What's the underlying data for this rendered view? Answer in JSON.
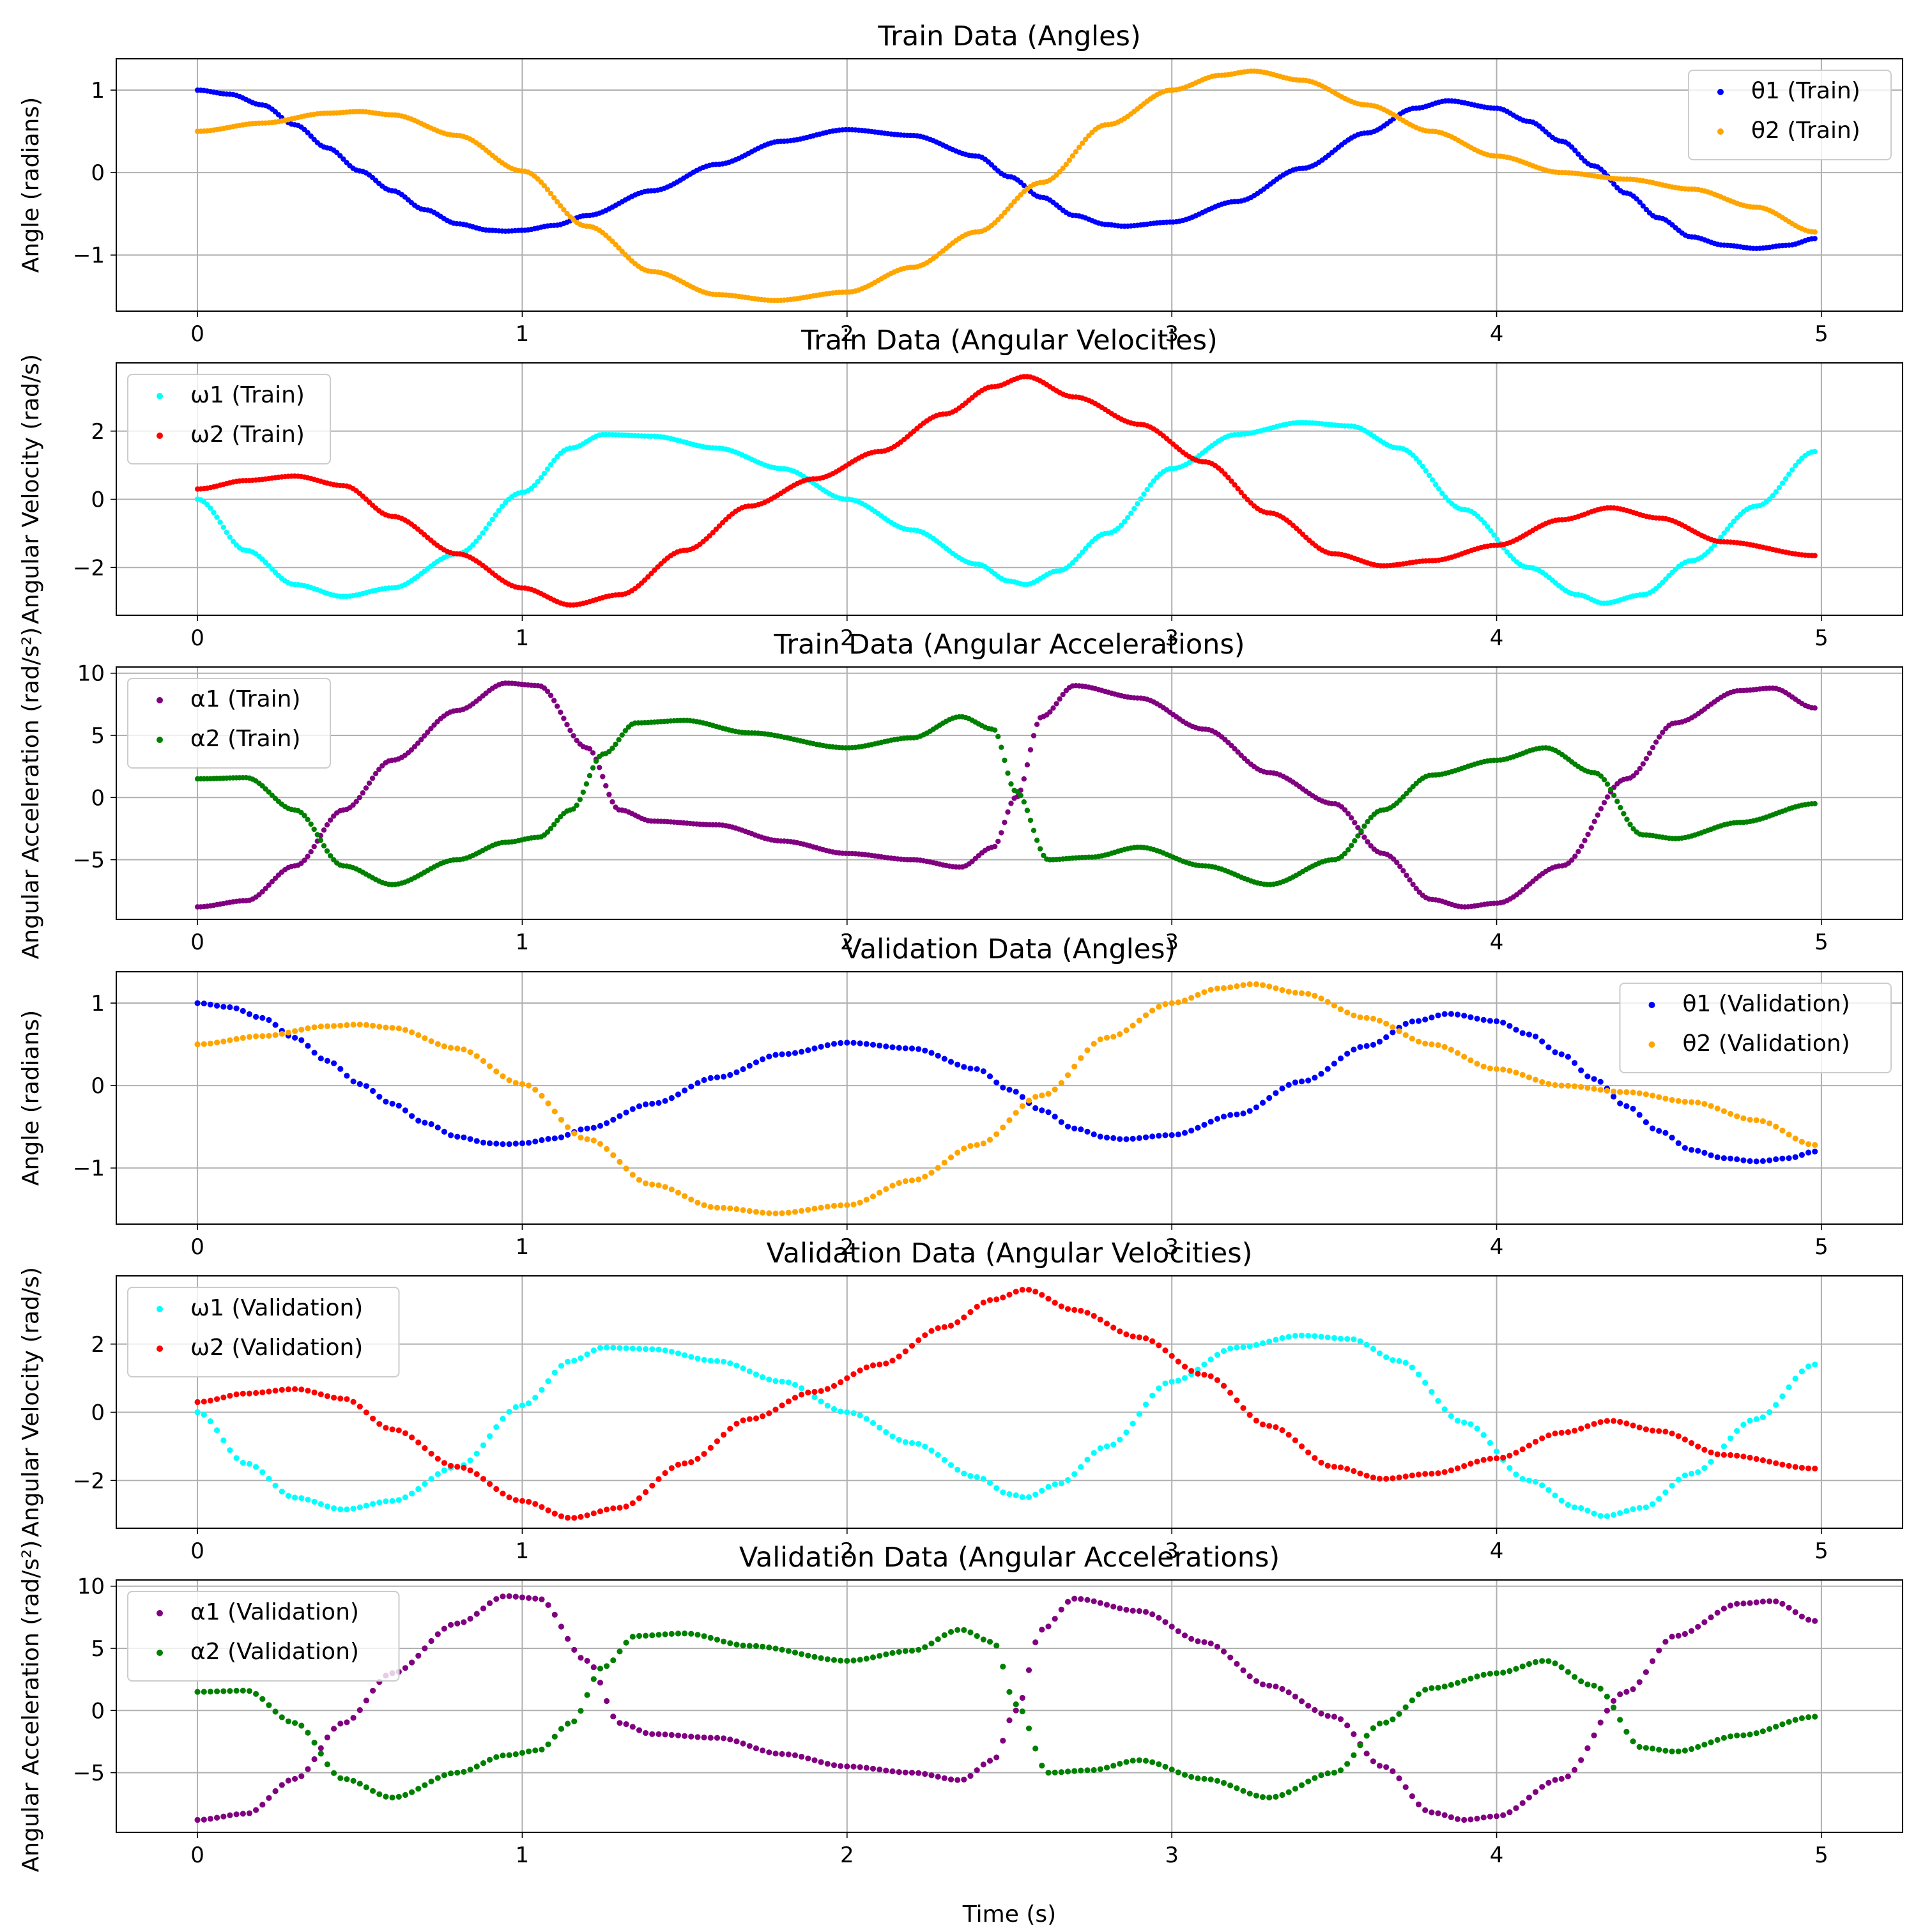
{
  "chart_data": [
    {
      "type": "scatter",
      "title": "Train Data (Angles)",
      "xlabel": "",
      "ylabel": "Angle (radians)",
      "xlim": [
        -0.25,
        5.25
      ],
      "ylim": [
        -1.68,
        1.38
      ],
      "xticks": [
        "0",
        "1",
        "2",
        "3",
        "4",
        "5"
      ],
      "yticks": [
        "1",
        "0",
        "−1"
      ],
      "legend_position": "upper right",
      "grid": true,
      "x": {
        "start": 0,
        "end": 4.98,
        "count": 500
      },
      "series": [
        {
          "name": "θ1 (Train)",
          "color": "#0000ff",
          "keyframes": [
            [
              0,
              1.0
            ],
            [
              0.1,
              0.95
            ],
            [
              0.2,
              0.82
            ],
            [
              0.3,
              0.58
            ],
            [
              0.4,
              0.3
            ],
            [
              0.5,
              0.02
            ],
            [
              0.6,
              -0.22
            ],
            [
              0.7,
              -0.45
            ],
            [
              0.8,
              -0.62
            ],
            [
              0.9,
              -0.7
            ],
            [
              0.95,
              -0.71
            ],
            [
              1.0,
              -0.7
            ],
            [
              1.1,
              -0.64
            ],
            [
              1.2,
              -0.52
            ],
            [
              1.4,
              -0.22
            ],
            [
              1.6,
              0.1
            ],
            [
              1.8,
              0.38
            ],
            [
              2.0,
              0.52
            ],
            [
              2.2,
              0.45
            ],
            [
              2.4,
              0.2
            ],
            [
              2.5,
              -0.05
            ],
            [
              2.6,
              -0.3
            ],
            [
              2.7,
              -0.52
            ],
            [
              2.8,
              -0.63
            ],
            [
              2.85,
              -0.65
            ],
            [
              3.0,
              -0.6
            ],
            [
              3.2,
              -0.35
            ],
            [
              3.4,
              0.05
            ],
            [
              3.6,
              0.48
            ],
            [
              3.75,
              0.78
            ],
            [
              3.85,
              0.87
            ],
            [
              4.0,
              0.78
            ],
            [
              4.1,
              0.62
            ],
            [
              4.2,
              0.38
            ],
            [
              4.3,
              0.08
            ],
            [
              4.4,
              -0.25
            ],
            [
              4.5,
              -0.55
            ],
            [
              4.6,
              -0.78
            ],
            [
              4.7,
              -0.88
            ],
            [
              4.8,
              -0.92
            ],
            [
              4.9,
              -0.88
            ],
            [
              4.98,
              -0.8
            ]
          ]
        },
        {
          "name": "θ2 (Train)",
          "color": "#ffa500",
          "keyframes": [
            [
              0,
              0.5
            ],
            [
              0.2,
              0.6
            ],
            [
              0.4,
              0.72
            ],
            [
              0.5,
              0.74
            ],
            [
              0.6,
              0.7
            ],
            [
              0.8,
              0.45
            ],
            [
              1.0,
              0.02
            ],
            [
              1.2,
              -0.65
            ],
            [
              1.4,
              -1.2
            ],
            [
              1.6,
              -1.48
            ],
            [
              1.78,
              -1.55
            ],
            [
              2.0,
              -1.45
            ],
            [
              2.2,
              -1.15
            ],
            [
              2.4,
              -0.72
            ],
            [
              2.6,
              -0.12
            ],
            [
              2.8,
              0.58
            ],
            [
              3.0,
              1.0
            ],
            [
              3.15,
              1.18
            ],
            [
              3.25,
              1.23
            ],
            [
              3.4,
              1.12
            ],
            [
              3.6,
              0.82
            ],
            [
              3.8,
              0.5
            ],
            [
              4.0,
              0.2
            ],
            [
              4.2,
              0.0
            ],
            [
              4.4,
              -0.08
            ],
            [
              4.6,
              -0.2
            ],
            [
              4.8,
              -0.42
            ],
            [
              4.98,
              -0.72
            ]
          ]
        }
      ]
    },
    {
      "type": "scatter",
      "title": "Train Data (Angular Velocities)",
      "xlabel": "",
      "ylabel": "Angular Velocity (rad/s)",
      "xlim": [
        -0.25,
        5.25
      ],
      "ylim": [
        -3.4,
        4.0
      ],
      "xticks": [
        "0",
        "1",
        "2",
        "3",
        "4",
        "5"
      ],
      "yticks": [
        "2",
        "0",
        "−2"
      ],
      "legend_position": "upper left",
      "grid": true,
      "x": {
        "start": 0,
        "end": 4.98,
        "count": 500
      },
      "series": [
        {
          "name": "ω1 (Train)",
          "color": "#00ffff",
          "keyframes": [
            [
              0,
              0.0
            ],
            [
              0.15,
              -1.5
            ],
            [
              0.3,
              -2.5
            ],
            [
              0.45,
              -2.85
            ],
            [
              0.6,
              -2.6
            ],
            [
              0.8,
              -1.6
            ],
            [
              1.0,
              0.2
            ],
            [
              1.15,
              1.5
            ],
            [
              1.25,
              1.9
            ],
            [
              1.4,
              1.85
            ],
            [
              1.6,
              1.5
            ],
            [
              1.8,
              0.9
            ],
            [
              2.0,
              0.0
            ],
            [
              2.2,
              -0.9
            ],
            [
              2.4,
              -1.9
            ],
            [
              2.5,
              -2.4
            ],
            [
              2.55,
              -2.5
            ],
            [
              2.65,
              -2.1
            ],
            [
              2.8,
              -1.0
            ],
            [
              3.0,
              0.9
            ],
            [
              3.2,
              1.9
            ],
            [
              3.4,
              2.25
            ],
            [
              3.55,
              2.15
            ],
            [
              3.7,
              1.5
            ],
            [
              3.9,
              -0.3
            ],
            [
              4.1,
              -2.0
            ],
            [
              4.25,
              -2.8
            ],
            [
              4.33,
              -3.05
            ],
            [
              4.45,
              -2.8
            ],
            [
              4.6,
              -1.8
            ],
            [
              4.8,
              -0.2
            ],
            [
              4.98,
              1.4
            ]
          ]
        },
        {
          "name": "ω2 (Train)",
          "color": "#ff0000",
          "keyframes": [
            [
              0,
              0.3
            ],
            [
              0.15,
              0.55
            ],
            [
              0.3,
              0.68
            ],
            [
              0.45,
              0.4
            ],
            [
              0.6,
              -0.5
            ],
            [
              0.8,
              -1.6
            ],
            [
              1.0,
              -2.6
            ],
            [
              1.15,
              -3.1
            ],
            [
              1.3,
              -2.8
            ],
            [
              1.5,
              -1.5
            ],
            [
              1.7,
              -0.2
            ],
            [
              1.9,
              0.6
            ],
            [
              2.1,
              1.4
            ],
            [
              2.3,
              2.5
            ],
            [
              2.45,
              3.3
            ],
            [
              2.55,
              3.6
            ],
            [
              2.7,
              3.0
            ],
            [
              2.9,
              2.2
            ],
            [
              3.1,
              1.1
            ],
            [
              3.3,
              -0.4
            ],
            [
              3.5,
              -1.6
            ],
            [
              3.65,
              -1.95
            ],
            [
              3.8,
              -1.8
            ],
            [
              4.0,
              -1.35
            ],
            [
              4.2,
              -0.6
            ],
            [
              4.35,
              -0.25
            ],
            [
              4.5,
              -0.55
            ],
            [
              4.7,
              -1.25
            ],
            [
              4.98,
              -1.65
            ]
          ]
        }
      ]
    },
    {
      "type": "scatter",
      "title": "Train Data (Angular Accelerations)",
      "xlabel": "",
      "ylabel": "Angular Acceleration (rad/s²)",
      "xlim": [
        -0.25,
        5.25
      ],
      "ylim": [
        -9.8,
        10.5
      ],
      "xticks": [
        "0",
        "1",
        "2",
        "3",
        "4",
        "5"
      ],
      "yticks": [
        "10",
        "5",
        "0",
        "−5"
      ],
      "legend_position": "upper left",
      "grid": true,
      "x": {
        "start": 0,
        "end": 4.98,
        "count": 500
      },
      "series": [
        {
          "name": "α1 (Train)",
          "color": "#800080",
          "keyframes": [
            [
              0,
              -8.8
            ],
            [
              0.15,
              -8.3
            ],
            [
              0.3,
              -5.5
            ],
            [
              0.45,
              -1.0
            ],
            [
              0.6,
              3.0
            ],
            [
              0.8,
              7.0
            ],
            [
              0.95,
              9.2
            ],
            [
              1.05,
              9.0
            ],
            [
              1.2,
              4.0
            ],
            [
              1.3,
              -1.0
            ],
            [
              1.4,
              -1.9
            ],
            [
              1.6,
              -2.2
            ],
            [
              1.8,
              -3.5
            ],
            [
              2.0,
              -4.5
            ],
            [
              2.2,
              -5.0
            ],
            [
              2.35,
              -5.6
            ],
            [
              2.45,
              -4.0
            ],
            [
              2.52,
              0.0
            ],
            [
              2.6,
              6.5
            ],
            [
              2.7,
              9.0
            ],
            [
              2.9,
              8.0
            ],
            [
              3.1,
              5.5
            ],
            [
              3.3,
              2.0
            ],
            [
              3.5,
              -0.5
            ],
            [
              3.65,
              -4.5
            ],
            [
              3.8,
              -8.2
            ],
            [
              3.9,
              -8.8
            ],
            [
              4.0,
              -8.5
            ],
            [
              4.2,
              -5.5
            ],
            [
              4.4,
              1.5
            ],
            [
              4.55,
              6.0
            ],
            [
              4.75,
              8.6
            ],
            [
              4.85,
              8.8
            ],
            [
              4.98,
              7.2
            ]
          ]
        },
        {
          "name": "α2 (Train)",
          "color": "#008000",
          "keyframes": [
            [
              0,
              1.5
            ],
            [
              0.15,
              1.6
            ],
            [
              0.3,
              -1.0
            ],
            [
              0.45,
              -5.5
            ],
            [
              0.6,
              -7.0
            ],
            [
              0.8,
              -5.0
            ],
            [
              0.95,
              -3.6
            ],
            [
              1.05,
              -3.2
            ],
            [
              1.15,
              -1.0
            ],
            [
              1.25,
              3.5
            ],
            [
              1.35,
              6.0
            ],
            [
              1.5,
              6.2
            ],
            [
              1.7,
              5.2
            ],
            [
              2.0,
              4.0
            ],
            [
              2.2,
              4.8
            ],
            [
              2.35,
              6.5
            ],
            [
              2.45,
              5.5
            ],
            [
              2.52,
              0.5
            ],
            [
              2.62,
              -5.0
            ],
            [
              2.75,
              -4.8
            ],
            [
              2.9,
              -4.0
            ],
            [
              3.1,
              -5.5
            ],
            [
              3.3,
              -7.0
            ],
            [
              3.5,
              -5.0
            ],
            [
              3.65,
              -1.0
            ],
            [
              3.8,
              1.8
            ],
            [
              4.0,
              3.0
            ],
            [
              4.15,
              4.0
            ],
            [
              4.3,
              2.0
            ],
            [
              4.45,
              -3.0
            ],
            [
              4.55,
              -3.3
            ],
            [
              4.75,
              -2.0
            ],
            [
              4.98,
              -0.5
            ]
          ]
        }
      ]
    },
    {
      "type": "scatter",
      "title": "Validation Data (Angles)",
      "xlabel": "",
      "ylabel": "Angle (radians)",
      "xlim": [
        -0.25,
        5.25
      ],
      "ylim": [
        -1.68,
        1.38
      ],
      "xticks": [
        "0",
        "1",
        "2",
        "3",
        "4",
        "5"
      ],
      "yticks": [
        "1",
        "0",
        "−1"
      ],
      "legend_position": "upper right",
      "grid": true,
      "x": {
        "start": 0,
        "end": 4.98,
        "count": 250
      },
      "series": [
        {
          "name": "θ1 (Validation)",
          "color": "#0000ff",
          "same_as": "0.0"
        },
        {
          "name": "θ2 (Validation)",
          "color": "#ffa500",
          "same_as": "0.1"
        }
      ]
    },
    {
      "type": "scatter",
      "title": "Validation Data (Angular Velocities)",
      "xlabel": "",
      "ylabel": "Angular Velocity (rad/s)",
      "xlim": [
        -0.25,
        5.25
      ],
      "ylim": [
        -3.4,
        4.0
      ],
      "xticks": [
        "0",
        "1",
        "2",
        "3",
        "4",
        "5"
      ],
      "yticks": [
        "2",
        "0",
        "−2"
      ],
      "legend_position": "upper left",
      "grid": true,
      "x": {
        "start": 0,
        "end": 4.98,
        "count": 250
      },
      "series": [
        {
          "name": "ω1 (Validation)",
          "color": "#00ffff",
          "same_as": "1.0"
        },
        {
          "name": "ω2 (Validation)",
          "color": "#ff0000",
          "same_as": "1.1"
        }
      ]
    },
    {
      "type": "scatter",
      "title": "Validation Data (Angular Accelerations)",
      "xlabel": "Time (s)",
      "ylabel": "Angular Acceleration (rad/s²)",
      "xlim": [
        -0.25,
        5.25
      ],
      "ylim": [
        -9.8,
        10.5
      ],
      "xticks": [
        "0",
        "1",
        "2",
        "3",
        "4",
        "5"
      ],
      "yticks": [
        "10",
        "5",
        "0",
        "−5"
      ],
      "legend_position": "upper left",
      "grid": true,
      "x": {
        "start": 0,
        "end": 4.98,
        "count": 250
      },
      "series": [
        {
          "name": "α1 (Validation)",
          "color": "#800080",
          "same_as": "2.0"
        },
        {
          "name": "α2 (Validation)",
          "color": "#008000",
          "same_as": "2.1"
        }
      ]
    }
  ]
}
